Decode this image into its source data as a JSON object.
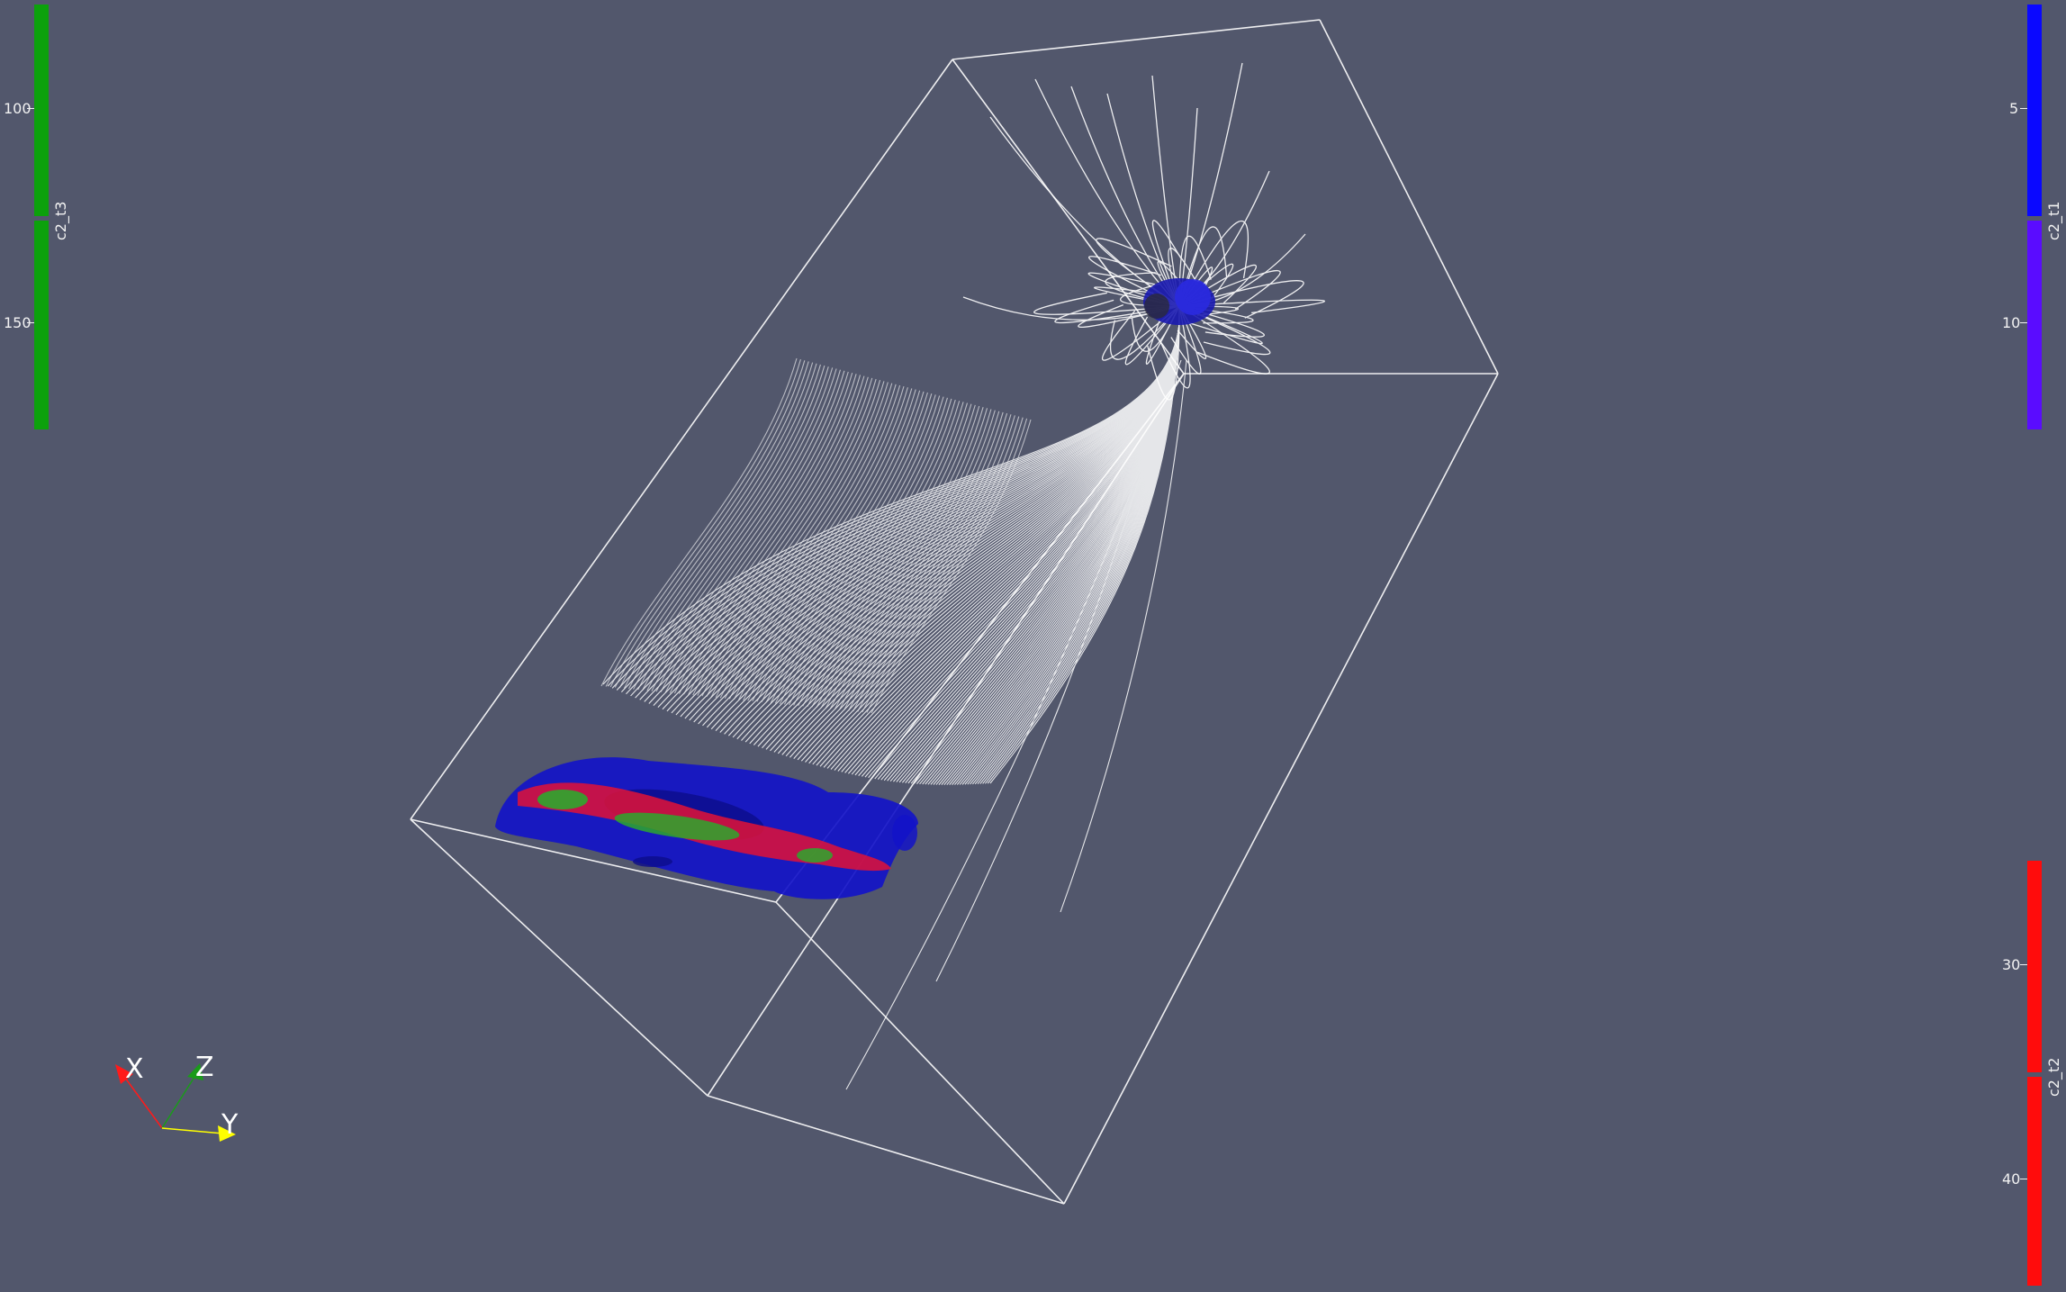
{
  "color_legends": [
    {
      "id": "c2_t3",
      "title": "c2_t3",
      "ticks": [
        "100",
        "150"
      ],
      "colors": [
        "#0ca10c",
        "#0ca10c"
      ]
    },
    {
      "id": "c2_t1",
      "title": "c2_t1",
      "ticks": [
        "5",
        "10"
      ],
      "colors": [
        "#0a08ff",
        "#5a0cff"
      ]
    },
    {
      "id": "c2_t2",
      "title": "c2_t2",
      "ticks": [
        "30",
        "40"
      ],
      "colors": [
        "#ff0c0c",
        "#ff0c0c"
      ]
    }
  ],
  "orientation_axes": {
    "x_label": "X",
    "y_label": "Y",
    "z_label": "Z",
    "x_color": "#ff1a1a",
    "y_color": "#ffff00",
    "z_color": "#1a9b1a"
  },
  "scene": {
    "background_color": "#52576c",
    "outline_color": "#ffffff",
    "streamline_color": "#ffffff",
    "isosurface_colors": [
      "#1010d0",
      "#e8102a",
      "#1aa01a"
    ]
  }
}
